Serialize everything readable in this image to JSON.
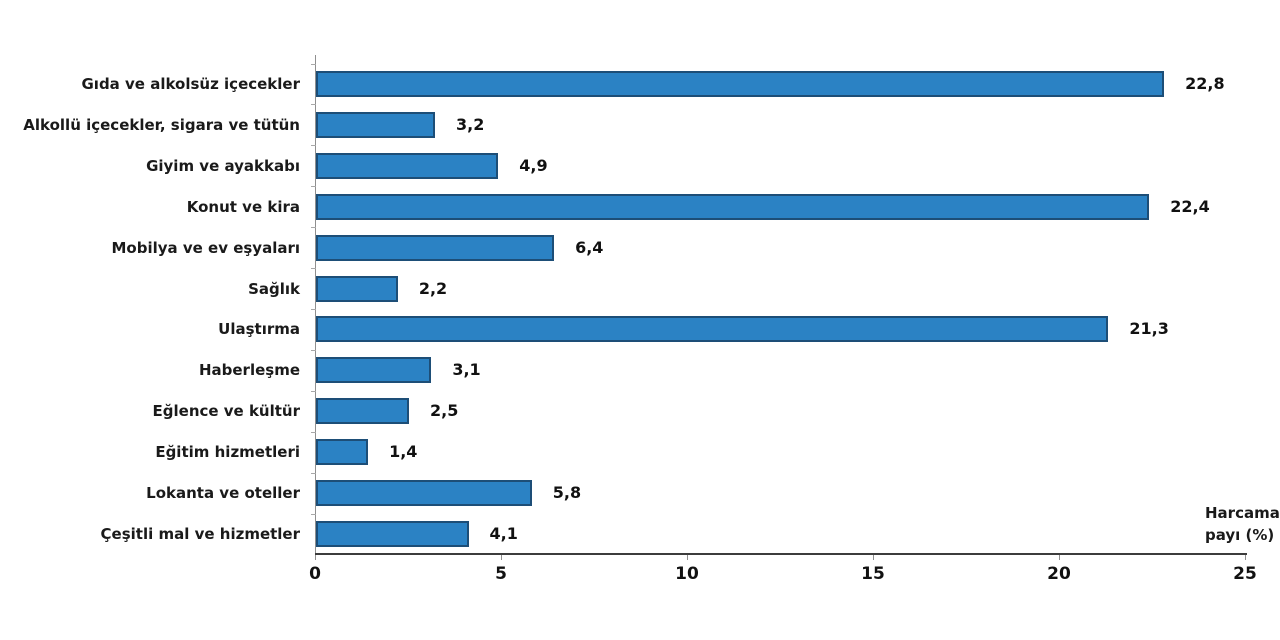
{
  "chart_data": {
    "type": "bar",
    "orientation": "horizontal",
    "title": "",
    "categories": [
      "Gıda ve alkolsüz içecekler",
      "Alkollü içecekler, sigara ve tütün",
      "Giyim ve ayakkabı",
      "Konut ve kira",
      "Mobilya ve ev eşyaları",
      "Sağlık",
      "Ulaştırma",
      "Haberleşme",
      "Eğlence ve kültür",
      "Eğitim hizmetleri",
      "Lokanta ve oteller",
      "Çeşitli mal ve hizmetler"
    ],
    "values": [
      22.8,
      3.2,
      4.9,
      22.4,
      6.4,
      2.2,
      21.3,
      3.1,
      2.5,
      1.4,
      5.8,
      4.1
    ],
    "value_labels": [
      "22,8",
      "3,2",
      "4,9",
      "22,4",
      "6,4",
      "2,2",
      "21,3",
      "3,1",
      "2,5",
      "1,4",
      "5,8",
      "4,1"
    ],
    "xlabel": "Harcama payı (%)",
    "xlabel_lines": [
      "Harcama",
      "payı (%)"
    ],
    "xlim": [
      0,
      25
    ],
    "xticks": [
      0,
      5,
      10,
      15,
      20,
      25
    ],
    "xtick_labels": [
      "0",
      "5",
      "10",
      "15",
      "20",
      "25"
    ],
    "grid": false,
    "legend": "none",
    "bar_color": "#2b82c4",
    "bar_border_color": "#1d4e77",
    "axis_line_color": "#3c3c3c"
  }
}
